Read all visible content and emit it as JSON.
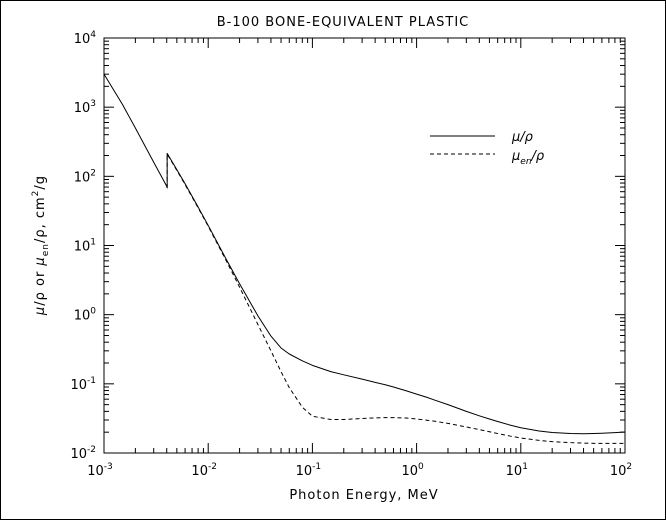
{
  "chart_data": {
    "type": "line",
    "title": "B-100 BONE-EQUIVALENT PLASTIC",
    "xlabel": "Photon Energy, MeV",
    "ylabel_parts": {
      "mu": "μ",
      "slash1": "/ρ",
      "or": " or ",
      "mu2": "μ",
      "sub": "en",
      "slash2": "/ρ, cm",
      "sup": "2",
      "unit_end": "/g"
    },
    "x_scale": "log",
    "y_scale": "log",
    "xlim": [
      0.001,
      100
    ],
    "ylim": [
      0.01,
      10000
    ],
    "x_ticks": [
      {
        "base": "10",
        "exp": "-3",
        "value": 0.001
      },
      {
        "base": "10",
        "exp": "-2",
        "value": 0.01
      },
      {
        "base": "10",
        "exp": "-1",
        "value": 0.1
      },
      {
        "base": "10",
        "exp": "0",
        "value": 1
      },
      {
        "base": "10",
        "exp": "1",
        "value": 10
      },
      {
        "base": "10",
        "exp": "2",
        "value": 100
      }
    ],
    "y_ticks": [
      {
        "base": "10",
        "exp": "-2",
        "value": 0.01
      },
      {
        "base": "10",
        "exp": "-1",
        "value": 0.1
      },
      {
        "base": "10",
        "exp": "0",
        "value": 1
      },
      {
        "base": "10",
        "exp": "1",
        "value": 10
      },
      {
        "base": "10",
        "exp": "2",
        "value": 100
      },
      {
        "base": "10",
        "exp": "3",
        "value": 1000
      },
      {
        "base": "10",
        "exp": "4",
        "value": 10000
      }
    ],
    "grid": false,
    "legend_position": "top-right",
    "series": [
      {
        "name_main": "μ",
        "name_sub": "",
        "name_rest": "/ρ",
        "style": "solid",
        "x": [
          0.001,
          0.0015,
          0.002,
          0.003,
          0.004,
          0.004038,
          0.004038,
          0.005,
          0.006,
          0.008,
          0.01,
          0.015,
          0.02,
          0.03,
          0.04,
          0.05,
          0.06,
          0.08,
          0.1,
          0.15,
          0.2,
          0.3,
          0.4,
          0.5,
          0.6,
          0.8,
          1,
          1.25,
          1.5,
          2,
          3,
          4,
          5,
          6,
          8,
          10,
          15,
          20,
          30,
          40,
          50,
          60,
          80,
          100
        ],
        "y": [
          3000,
          1100,
          500,
          160,
          72,
          68,
          215,
          125,
          78,
          36,
          19.5,
          6.2,
          2.8,
          0.96,
          0.49,
          0.33,
          0.27,
          0.215,
          0.185,
          0.15,
          0.135,
          0.117,
          0.105,
          0.097,
          0.09,
          0.079,
          0.071,
          0.064,
          0.058,
          0.05,
          0.04,
          0.0345,
          0.031,
          0.0285,
          0.0252,
          0.0232,
          0.0208,
          0.0198,
          0.0191,
          0.019,
          0.0191,
          0.0193,
          0.0197,
          0.0201
        ]
      },
      {
        "name_main": "μ",
        "name_sub": "en",
        "name_rest": "/ρ",
        "style": "dashed",
        "x": [
          0.004038,
          0.004038,
          0.005,
          0.006,
          0.008,
          0.01,
          0.015,
          0.02,
          0.03,
          0.04,
          0.05,
          0.06,
          0.08,
          0.1,
          0.15,
          0.2,
          0.3,
          0.4,
          0.5,
          0.6,
          0.8,
          1,
          1.25,
          1.5,
          2,
          3,
          4,
          5,
          6,
          8,
          10,
          15,
          20,
          30,
          40,
          50,
          60,
          80,
          100
        ],
        "y": [
          68,
          210,
          122,
          76,
          35,
          19,
          5.9,
          2.5,
          0.72,
          0.3,
          0.15,
          0.088,
          0.046,
          0.034,
          0.0305,
          0.0305,
          0.0315,
          0.0322,
          0.0325,
          0.0325,
          0.032,
          0.031,
          0.0298,
          0.0288,
          0.0268,
          0.0238,
          0.0218,
          0.0203,
          0.0191,
          0.0175,
          0.0165,
          0.0152,
          0.0146,
          0.0141,
          0.0139,
          0.0138,
          0.0138,
          0.0138,
          0.0138
        ]
      }
    ]
  }
}
